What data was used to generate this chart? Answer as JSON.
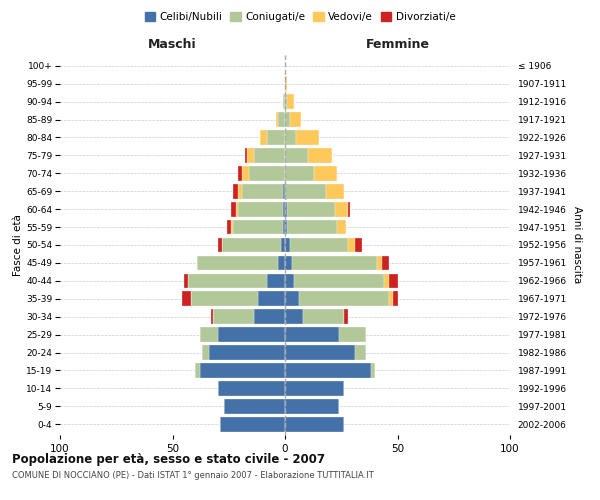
{
  "age_groups": [
    "0-4",
    "5-9",
    "10-14",
    "15-19",
    "20-24",
    "25-29",
    "30-34",
    "35-39",
    "40-44",
    "45-49",
    "50-54",
    "55-59",
    "60-64",
    "65-69",
    "70-74",
    "75-79",
    "80-84",
    "85-89",
    "90-94",
    "95-99",
    "100+"
  ],
  "birth_years": [
    "2002-2006",
    "1997-2001",
    "1992-1996",
    "1987-1991",
    "1982-1986",
    "1977-1981",
    "1972-1976",
    "1967-1971",
    "1962-1966",
    "1957-1961",
    "1952-1956",
    "1947-1951",
    "1942-1946",
    "1937-1941",
    "1932-1936",
    "1927-1931",
    "1922-1926",
    "1917-1921",
    "1912-1916",
    "1907-1911",
    "≤ 1906"
  ],
  "male": {
    "celibi": [
      29,
      27,
      30,
      38,
      34,
      30,
      14,
      12,
      8,
      3,
      2,
      1,
      1,
      1,
      0,
      0,
      0,
      0,
      0,
      0,
      0
    ],
    "coniugati": [
      0,
      0,
      0,
      2,
      3,
      8,
      18,
      30,
      35,
      36,
      26,
      22,
      20,
      18,
      16,
      14,
      8,
      3,
      1,
      0,
      0
    ],
    "vedovi": [
      0,
      0,
      0,
      0,
      0,
      0,
      0,
      0,
      0,
      0,
      0,
      1,
      1,
      2,
      3,
      3,
      3,
      1,
      0,
      0,
      0
    ],
    "divorziati": [
      0,
      0,
      0,
      0,
      0,
      0,
      1,
      4,
      2,
      0,
      2,
      2,
      2,
      2,
      2,
      1,
      0,
      0,
      0,
      0,
      0
    ]
  },
  "female": {
    "nubili": [
      26,
      24,
      26,
      38,
      31,
      24,
      8,
      6,
      4,
      3,
      2,
      1,
      1,
      0,
      0,
      0,
      0,
      0,
      0,
      0,
      0
    ],
    "coniugate": [
      0,
      0,
      0,
      2,
      5,
      12,
      18,
      40,
      40,
      38,
      26,
      22,
      21,
      18,
      13,
      10,
      5,
      2,
      1,
      0,
      0
    ],
    "vedove": [
      0,
      0,
      0,
      0,
      0,
      0,
      0,
      2,
      2,
      2,
      3,
      4,
      6,
      8,
      10,
      11,
      10,
      5,
      3,
      1,
      0
    ],
    "divorziate": [
      0,
      0,
      0,
      0,
      0,
      0,
      2,
      2,
      4,
      3,
      3,
      0,
      1,
      0,
      0,
      0,
      0,
      0,
      0,
      0,
      0
    ]
  },
  "colors": {
    "celibi_nubili": "#4472a8",
    "coniugati": "#b2c899",
    "vedovi": "#ffc85a",
    "divorziati": "#cc2222"
  },
  "title": "Popolazione per età, sesso e stato civile - 2007",
  "subtitle": "COMUNE DI NOCCIANO (PE) - Dati ISTAT 1° gennaio 2007 - Elaborazione TUTTITALIA.IT",
  "xlabel_maschi": "Maschi",
  "xlabel_femmine": "Femmine",
  "ylabel_left": "Fasce di età",
  "ylabel_right": "Anni di nascita",
  "xlim": 100,
  "background_color": "#ffffff"
}
